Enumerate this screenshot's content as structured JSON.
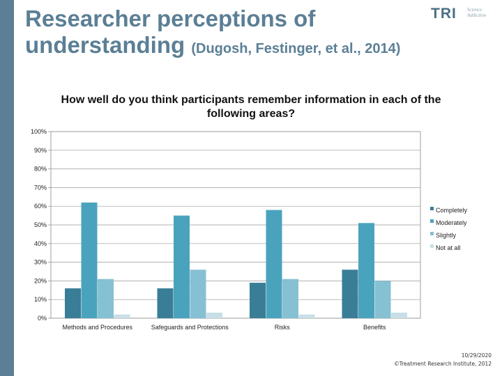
{
  "slide": {
    "title_main": "Researcher perceptions of understanding",
    "title_citation": "(Dugosh, Festinger, et al., 2014)",
    "logo_text": "TRI",
    "logo_sub_1": "Science",
    "logo_sub_2": "Addiction",
    "footer_date": "10/29/2020",
    "footer_copyright": "©Treatment Research Institute, 2012"
  },
  "colors": {
    "accent": "#5b7f95",
    "series": [
      "#3a7d96",
      "#4aa3bd",
      "#86c0d3",
      "#c9dfe7"
    ]
  },
  "chart_data": {
    "type": "bar",
    "title": "How well do you think participants remember information in each of the following areas?",
    "categories": [
      "Methods and Procedures",
      "Safeguards and Protections",
      "Risks",
      "Benefits"
    ],
    "series": [
      {
        "name": "Completely",
        "values": [
          16,
          16,
          19,
          26
        ]
      },
      {
        "name": "Moderately",
        "values": [
          62,
          55,
          58,
          51
        ]
      },
      {
        "name": "Slightly",
        "values": [
          21,
          26,
          21,
          20
        ]
      },
      {
        "name": "Not at all",
        "values": [
          2,
          3,
          2,
          3
        ]
      }
    ],
    "ylim": [
      0,
      100
    ],
    "yticks": [
      "0%",
      "10%",
      "20%",
      "30%",
      "40%",
      "50%",
      "60%",
      "70%",
      "80%",
      "90%",
      "100%"
    ],
    "grid": true,
    "legend_position": "right"
  }
}
